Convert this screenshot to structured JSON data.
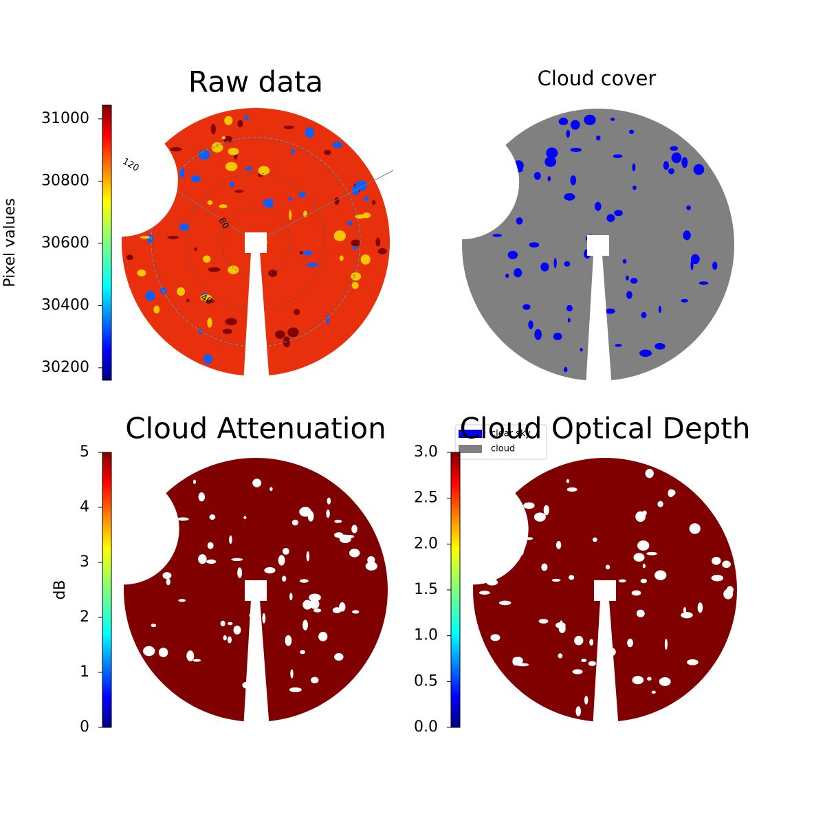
{
  "chart_data": [
    {
      "type": "image",
      "title": "Raw data",
      "color": "#e8300c",
      "spot_colors": [
        "#800000",
        "#f5c800",
        "#0a60ff"
      ],
      "colormap": "jet",
      "colorbar_label": "Pixel values",
      "clim": [
        30160,
        31044
      ],
      "cticks": [
        {
          "value": 30200,
          "label": "30200"
        },
        {
          "value": 30400,
          "label": "30400"
        },
        {
          "value": 30600,
          "label": "30600"
        },
        {
          "value": 30800,
          "label": "30800"
        },
        {
          "value": 31000,
          "label": "31000"
        }
      ],
      "annotations": [
        "120",
        "80",
        "40"
      ]
    },
    {
      "type": "image",
      "title": "Cloud cover",
      "color": "#808080",
      "spot_colors": [
        "#0000ff"
      ],
      "series": [
        {
          "name": "clear sky",
          "color": "#0000ff"
        },
        {
          "name": "cloud",
          "color": "#808080"
        }
      ]
    },
    {
      "type": "image",
      "title": "Cloud Attenuation",
      "color": "#800000",
      "spot_colors": [
        "#ffffff"
      ],
      "colormap": "jet",
      "colorbar_label": "dB",
      "clim": [
        0,
        5
      ],
      "cticks": [
        0,
        1,
        2,
        3,
        4,
        5
      ]
    },
    {
      "type": "image",
      "title": "Cloud Optical Depth",
      "color": "#800000",
      "spot_colors": [
        "#ffffff"
      ],
      "colormap": "jet",
      "clim": [
        0,
        3
      ],
      "cticks": [
        {
          "value": 0,
          "label": "0.0"
        },
        {
          "value": 0.5,
          "label": "0.5"
        },
        {
          "value": 1,
          "label": "1.0"
        },
        {
          "value": 1.5,
          "label": "1.5"
        },
        {
          "value": 2,
          "label": "2.0"
        },
        {
          "value": 2.5,
          "label": "2.5"
        },
        {
          "value": 3,
          "label": "3.0"
        }
      ]
    }
  ]
}
